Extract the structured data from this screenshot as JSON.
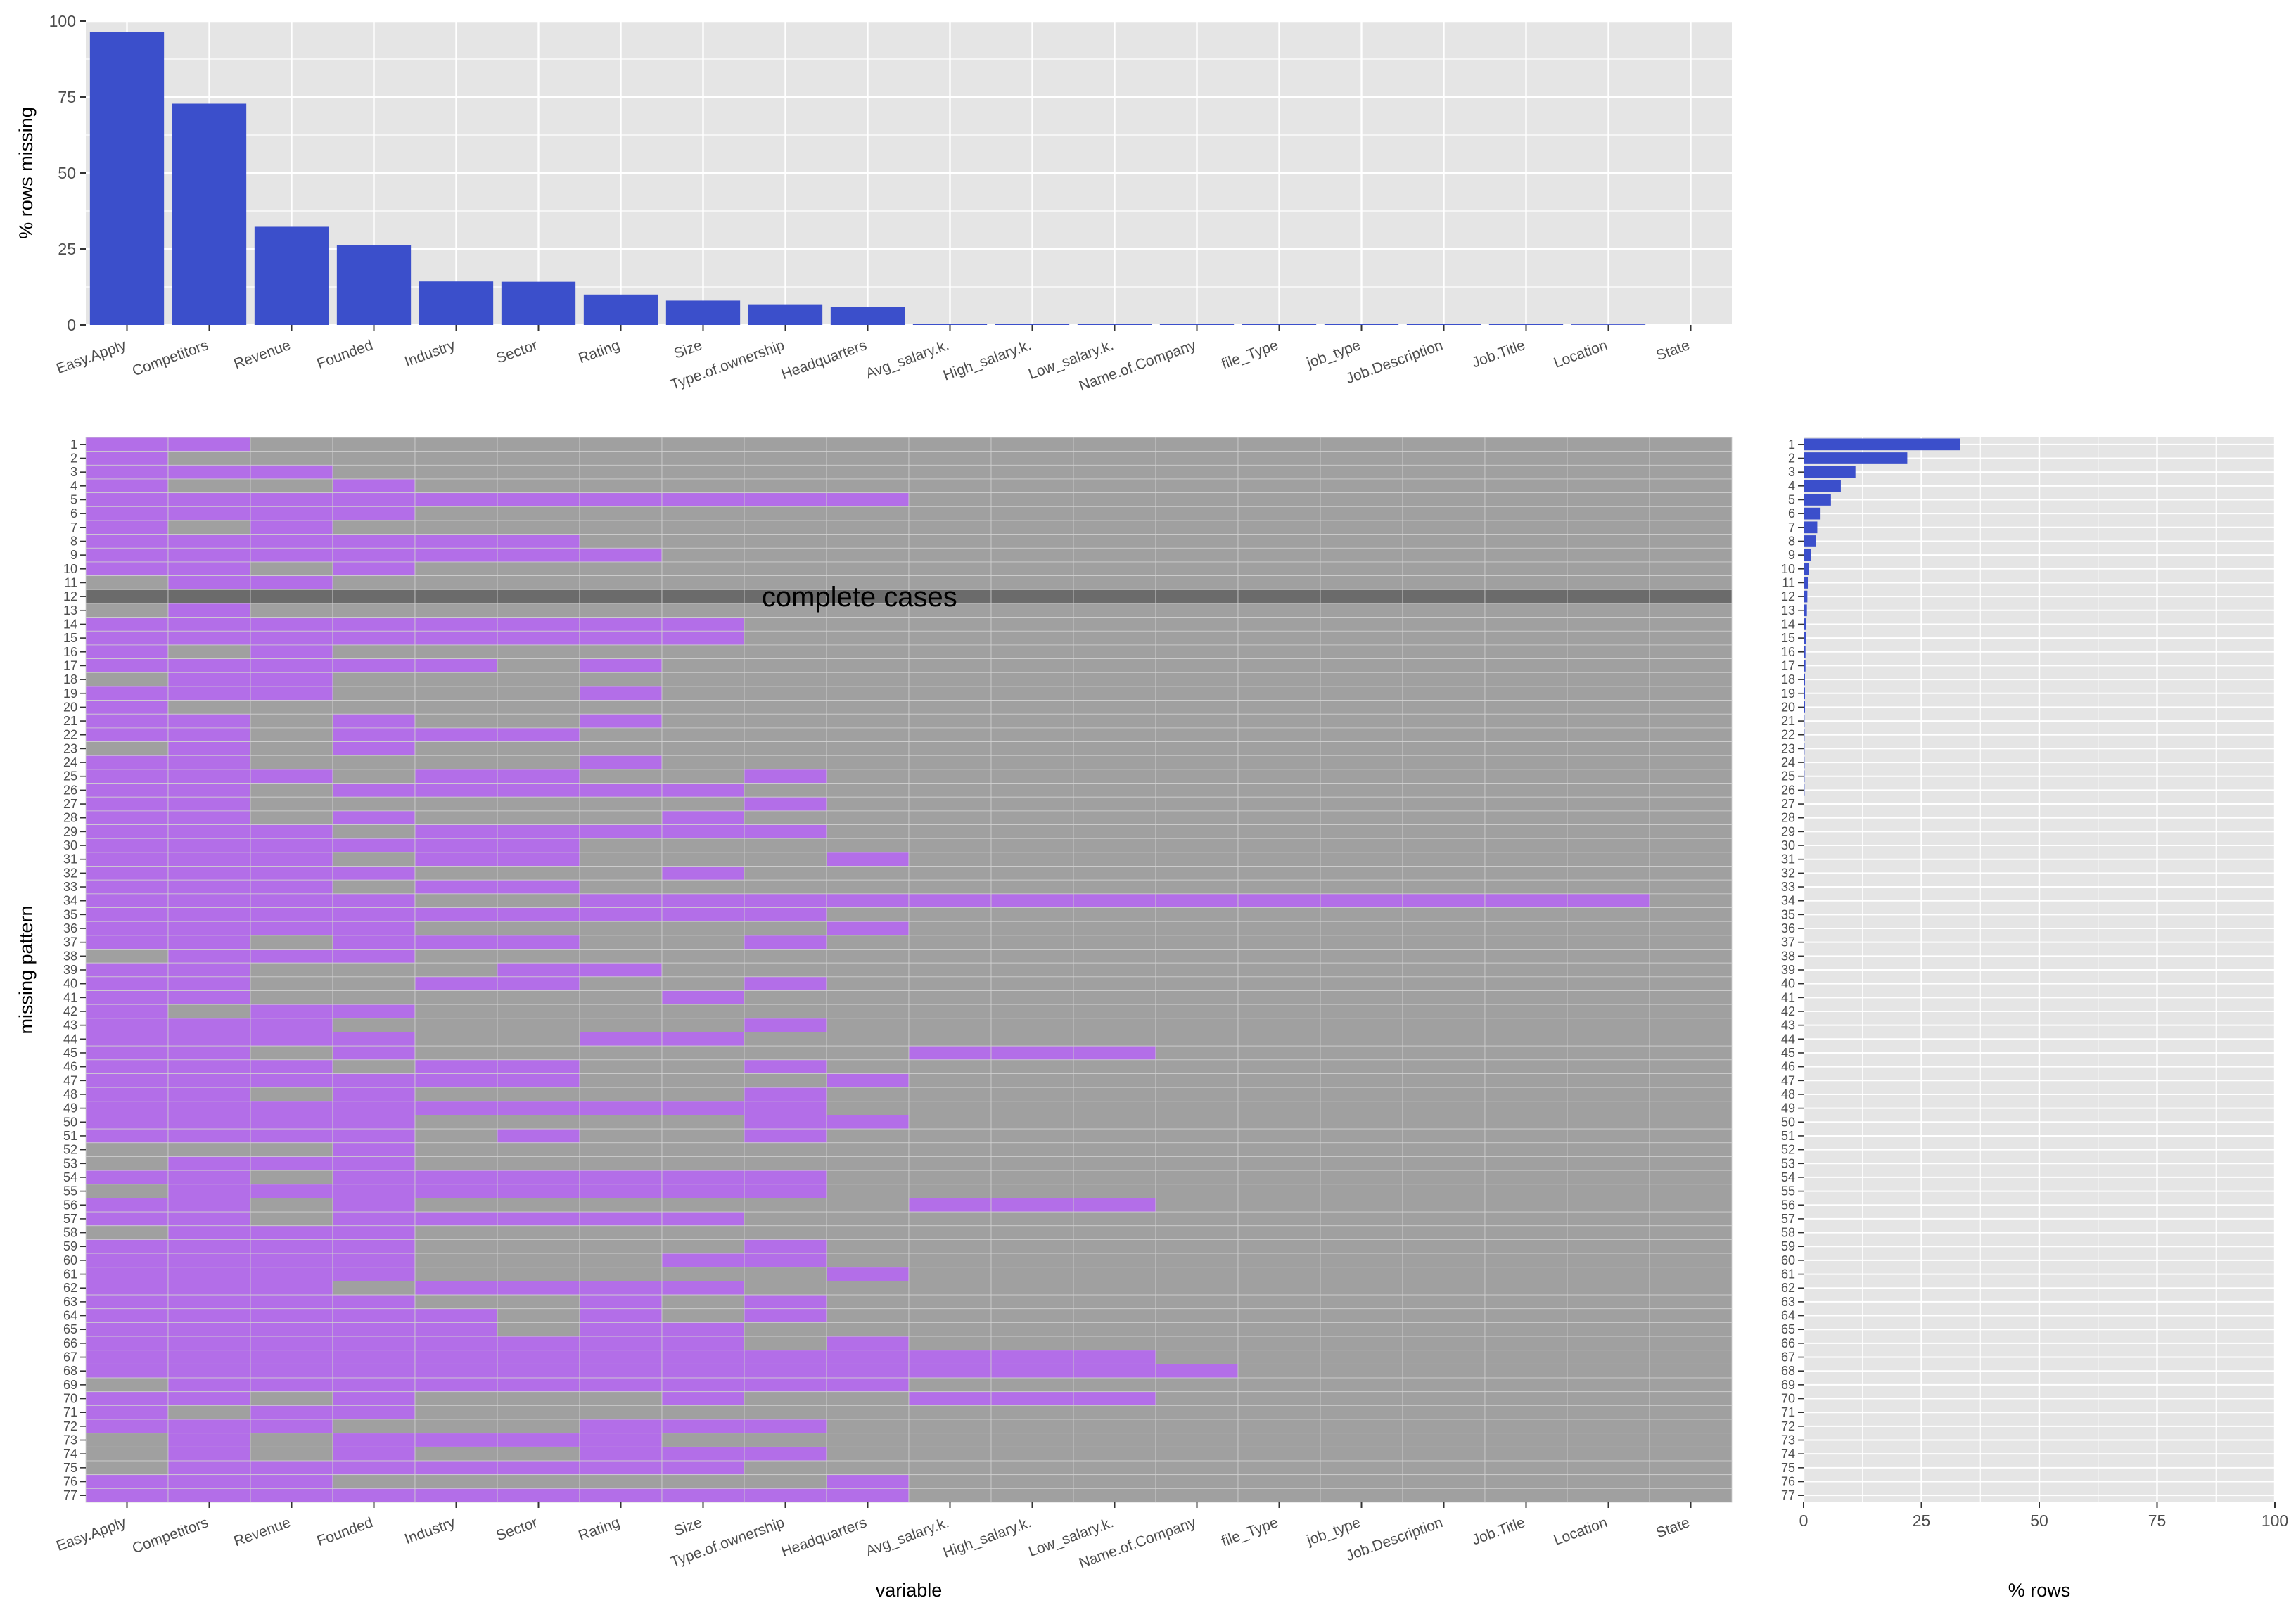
{
  "chart_data": [
    {
      "type": "bar",
      "ylabel": "% rows missing",
      "ylim": [
        0,
        100
      ],
      "yticks": [
        0,
        25,
        50,
        75,
        100
      ],
      "grid": true,
      "categories": [
        "Easy.Apply",
        "Competitors",
        "Revenue",
        "Founded",
        "Industry",
        "Sector",
        "Rating",
        "Size",
        "Type.of.ownership",
        "Headquarters",
        "Avg_salary.k.",
        "High_salary.k.",
        "Low_salary.k.",
        "Name.of.Company",
        "file_Type",
        "job_type",
        "Job.Description",
        "Job.Title",
        "Location",
        "State"
      ],
      "values": [
        96.3,
        72.8,
        32.3,
        26.2,
        14.3,
        14.2,
        10.0,
        8.0,
        6.8,
        6.0,
        0.4,
        0.4,
        0.4,
        0.3,
        0.3,
        0.3,
        0.3,
        0.3,
        0.2,
        0
      ]
    },
    {
      "type": "heatmap",
      "xlabel": "variable",
      "ylabel": "missing pattern",
      "annotation": "complete cases",
      "complete_cases_row": 12,
      "missing_color": "#b36ee8",
      "present_color": "#a0a0a0",
      "complete_color": "#6b6b6b",
      "columns": [
        "Easy.Apply",
        "Competitors",
        "Revenue",
        "Founded",
        "Industry",
        "Sector",
        "Rating",
        "Size",
        "Type.of.ownership",
        "Headquarters",
        "Avg_salary.k.",
        "High_salary.k.",
        "Low_salary.k.",
        "Name.of.Company",
        "file_Type",
        "job_type",
        "Job.Description",
        "Job.Title",
        "Location",
        "State"
      ],
      "rows": [
        "11000000000000000000",
        "10000000000000000000",
        "11100000000000000000",
        "10010000000000000000",
        "11111111110000000000",
        "11110000000000000000",
        "10100000000000000000",
        "11111100000000000000",
        "11111110000000000000",
        "11010000000000000000",
        "01100000000000000000",
        "00000000000000000000",
        "01000000000000000000",
        "11111111000000000000",
        "11111111000000000000",
        "10100000000000000000",
        "11111010000000000000",
        "01100000000000000000",
        "11100010000000000000",
        "10000000000000000000",
        "11010010000000000000",
        "11011100000000000000",
        "01010000000000000000",
        "11000010000000000000",
        "11101100100000000000",
        "11011111000000000000",
        "11000000100000000000",
        "11010001000000000000",
        "11101111100000000000",
        "11111100000000000000",
        "11101100010000000000",
        "11110001000000000000",
        "11101100000000000000",
        "11110011111111111110",
        "11111111100000000000",
        "11110000010000000000",
        "11011100100000000000",
        "01110000000000000000",
        "11000110000000000000",
        "11001100100000000000",
        "11000001000000000000",
        "10110000000000000000",
        "11100000100000000000",
        "11110011000000000000",
        "11010000001110000000",
        "11101100100000000000",
        "11111100010000000000",
        "11010000100000000000",
        "11111111100000000000",
        "11110000110000000000",
        "11110100100000000000",
        "00010000000000000000",
        "01110000000000000000",
        "11011111100000000000",
        "01111111100000000000",
        "11010000001110000000",
        "11011111000000000000",
        "01110000000000000000",
        "11110000100000000000",
        "11110001100000000000",
        "11110000010000000000",
        "11101111000000000000",
        "11110010100000000000",
        "11111010100000000000",
        "11111011000000000000",
        "11111111010000000000",
        "11111111111110000000",
        "11111111111111000000",
        "01111111110000000000",
        "11010001001110000000",
        "10110000000000000000",
        "11100011100000000000",
        "01011110000000000000",
        "01010011100000000000",
        "01111111000000000000",
        "11100000010000000000",
        "11111111110000000000"
      ]
    },
    {
      "type": "bar",
      "orientation": "horizontal",
      "xlabel": "% rows",
      "xlim": [
        0,
        100
      ],
      "xticks": [
        0,
        25,
        50,
        75,
        100
      ],
      "grid": true,
      "categories": [
        "1",
        "2",
        "3",
        "4",
        "5",
        "6",
        "7",
        "8",
        "9",
        "10",
        "11",
        "12",
        "13",
        "14",
        "15",
        "16",
        "17",
        "18",
        "19",
        "20",
        "21",
        "22",
        "23",
        "24",
        "25",
        "26",
        "27",
        "28",
        "29",
        "30",
        "31",
        "32",
        "33",
        "34",
        "35",
        "36",
        "37",
        "38",
        "39",
        "40",
        "41",
        "42",
        "43",
        "44",
        "45",
        "46",
        "47",
        "48",
        "49",
        "50",
        "51",
        "52",
        "53",
        "54",
        "55",
        "56",
        "57",
        "58",
        "59",
        "60",
        "61",
        "62",
        "63",
        "64",
        "65",
        "66",
        "67",
        "68",
        "69",
        "70",
        "71",
        "72",
        "73",
        "74",
        "75",
        "76",
        "77"
      ],
      "values": [
        33.2,
        22.0,
        11.0,
        7.9,
        5.8,
        3.6,
        2.9,
        2.6,
        1.5,
        1.1,
        0.9,
        0.8,
        0.7,
        0.6,
        0.5,
        0.4,
        0.4,
        0.3,
        0.3,
        0.3,
        0.2,
        0.2,
        0.2,
        0.2,
        0.2,
        0.2,
        0.1,
        0.1,
        0.1,
        0.1,
        0.1,
        0.1,
        0.1,
        0.1,
        0.1,
        0.1,
        0.1,
        0.1,
        0.1,
        0.1,
        0.1,
        0.1,
        0.1,
        0.1,
        0.1,
        0.1,
        0.1,
        0.1,
        0.1,
        0.1,
        0.1,
        0.1,
        0.1,
        0.1,
        0.1,
        0.1,
        0.1,
        0.1,
        0.1,
        0.1,
        0.1,
        0.1,
        0.1,
        0.1,
        0.1,
        0.1,
        0.1,
        0.1,
        0.1,
        0.1,
        0.1,
        0.1,
        0.1,
        0.1,
        0.1,
        0.1,
        0.1
      ]
    }
  ],
  "colors": {
    "bar": "#3b4fcb",
    "panel": "#e5e5e5",
    "grid": "#ffffff"
  }
}
